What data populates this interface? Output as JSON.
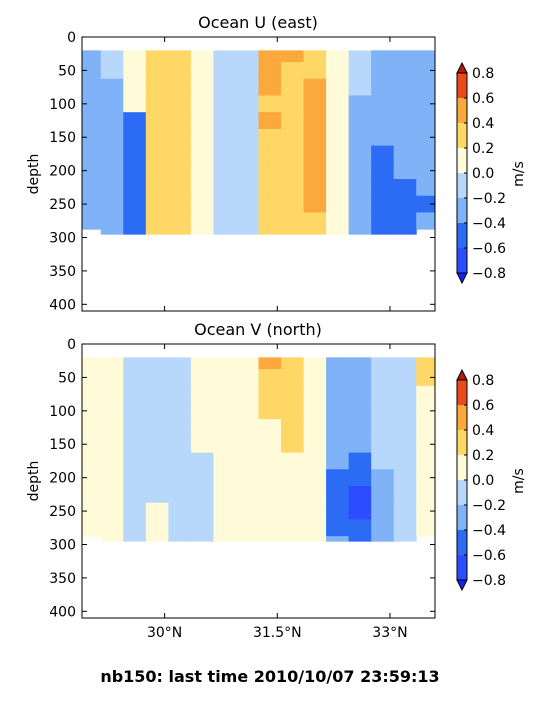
{
  "colors": {
    "levels": [
      "#2c4cff",
      "#2c6cf5",
      "#4a8df3",
      "#7fb2f7",
      "#b7d7fb",
      "#ddeffd",
      "#fffbd9",
      "#fff0b4",
      "#ffd766",
      "#fba83d",
      "#f07222",
      "#e94a1c"
    ],
    "under": "#1424ff",
    "over": "#b01a10",
    "white": "#ffffff"
  },
  "figure": {
    "suptitle": "nb150: last time 2010/10/07 23:59:13"
  },
  "panels": [
    {
      "id": "u",
      "title": "Ocean U (east)",
      "ylabel": "depth",
      "yticks": [
        "0",
        "50",
        "100",
        "150",
        "200",
        "250",
        "300",
        "350",
        "400"
      ],
      "cbar_label": "m/s",
      "cbar_ticks": [
        "0.8",
        "0.6",
        "0.4",
        "0.2",
        "0.0",
        "−0.2",
        "−0.4",
        "−0.6",
        "−0.8"
      ]
    },
    {
      "id": "v",
      "title": "Ocean V (north)",
      "ylabel": "depth",
      "yticks": [
        "0",
        "50",
        "100",
        "150",
        "200",
        "250",
        "300",
        "350",
        "400"
      ],
      "cbar_label": "m/s",
      "cbar_ticks": [
        "0.8",
        "0.6",
        "0.4",
        "0.2",
        "0.0",
        "−0.2",
        "−0.4",
        "−0.6",
        "−0.8"
      ]
    }
  ],
  "xticks": [
    "30°N",
    "31.5°N",
    "33°N"
  ],
  "chart_data": [
    {
      "type": "heatmap",
      "title": "Ocean U (east)",
      "ylabel": "depth",
      "colorbar_label": "m/s",
      "x": [
        29.0,
        29.3,
        29.6,
        29.9,
        30.2,
        30.5,
        30.8,
        31.1,
        31.4,
        31.7,
        32.0,
        32.3,
        32.6,
        32.9,
        33.2,
        33.5
      ],
      "y": [
        25,
        50,
        75,
        100,
        125,
        150,
        175,
        200,
        225,
        250,
        275,
        300
      ],
      "values": [
        [
          -0.25,
          -0.1,
          0.1,
          0.3,
          0.35,
          0.2,
          0.0,
          -0.1,
          0.55,
          0.45,
          0.35,
          0.05,
          -0.1,
          -0.2,
          -0.25,
          -0.25
        ],
        [
          -0.3,
          -0.15,
          0.1,
          0.3,
          0.4,
          0.2,
          0.0,
          -0.1,
          0.6,
          0.4,
          0.4,
          0.05,
          -0.15,
          -0.2,
          -0.25,
          -0.25
        ],
        [
          -0.3,
          -0.2,
          0.05,
          0.35,
          0.3,
          0.15,
          -0.05,
          -0.1,
          0.45,
          0.35,
          0.45,
          0.05,
          -0.15,
          -0.2,
          -0.25,
          -0.3
        ],
        [
          -0.25,
          -0.25,
          0.05,
          0.3,
          0.3,
          0.15,
          -0.05,
          -0.1,
          0.4,
          0.35,
          0.55,
          0.1,
          -0.2,
          -0.25,
          -0.25,
          -0.25
        ],
        [
          -0.3,
          -0.25,
          -0.45,
          0.3,
          0.25,
          0.15,
          -0.1,
          -0.15,
          0.45,
          0.35,
          0.5,
          0.1,
          -0.2,
          -0.3,
          -0.25,
          -0.3
        ],
        [
          -0.3,
          -0.3,
          -0.5,
          0.35,
          0.3,
          0.15,
          -0.1,
          -0.15,
          0.4,
          0.4,
          0.6,
          0.1,
          -0.2,
          -0.35,
          -0.3,
          -0.25
        ],
        [
          -0.25,
          -0.3,
          -0.5,
          0.35,
          0.3,
          0.15,
          -0.1,
          -0.15,
          0.4,
          0.3,
          0.55,
          0.1,
          -0.25,
          -0.4,
          -0.3,
          -0.3
        ],
        [
          -0.3,
          -0.25,
          -0.45,
          0.3,
          0.3,
          0.15,
          -0.1,
          -0.15,
          0.4,
          0.3,
          0.5,
          0.1,
          -0.25,
          -0.45,
          -0.35,
          -0.3
        ],
        [
          -0.35,
          -0.3,
          -0.45,
          0.3,
          0.35,
          0.15,
          -0.1,
          -0.15,
          0.4,
          0.3,
          0.5,
          0.15,
          -0.3,
          -0.5,
          -0.4,
          -0.35
        ],
        [
          -0.3,
          -0.3,
          -0.4,
          0.3,
          0.35,
          0.15,
          -0.1,
          -0.15,
          0.35,
          0.3,
          0.45,
          0.15,
          -0.3,
          -0.5,
          -0.45,
          -0.4
        ],
        [
          -0.3,
          -0.35,
          -0.4,
          0.3,
          0.3,
          0.15,
          -0.1,
          -0.15,
          0.35,
          0.35,
          0.4,
          0.1,
          -0.3,
          -0.55,
          -0.45,
          -0.35
        ],
        [
          null,
          -0.3,
          -0.4,
          0.3,
          0.3,
          0.15,
          -0.1,
          -0.1,
          0.35,
          0.35,
          0.4,
          0.1,
          -0.3,
          -0.55,
          -0.45,
          null
        ]
      ],
      "levels": [
        -0.8,
        -0.6,
        -0.4,
        -0.2,
        0.0,
        0.2,
        0.4,
        0.6,
        0.8
      ],
      "ylim": [
        410,
        0
      ]
    },
    {
      "type": "heatmap",
      "title": "Ocean V (north)",
      "ylabel": "depth",
      "colorbar_label": "m/s",
      "x": [
        29.0,
        29.3,
        29.6,
        29.9,
        30.2,
        30.5,
        30.8,
        31.1,
        31.4,
        31.7,
        32.0,
        32.3,
        32.6,
        32.9,
        33.2,
        33.5
      ],
      "y": [
        25,
        50,
        75,
        100,
        125,
        150,
        175,
        200,
        225,
        250,
        275,
        300
      ],
      "values": [
        [
          0.1,
          0.05,
          -0.05,
          -0.1,
          -0.05,
          0.05,
          0.1,
          0.15,
          0.45,
          0.35,
          0.15,
          -0.3,
          -0.25,
          -0.1,
          -0.05,
          0.3
        ],
        [
          0.1,
          0.05,
          -0.1,
          -0.1,
          -0.05,
          0.1,
          0.15,
          0.2,
          0.3,
          0.4,
          0.15,
          -0.3,
          -0.25,
          -0.15,
          -0.05,
          0.25
        ],
        [
          0.1,
          0.1,
          -0.1,
          -0.1,
          -0.1,
          0.1,
          0.15,
          0.2,
          0.25,
          0.3,
          0.15,
          -0.35,
          -0.3,
          -0.15,
          -0.05,
          0.2
        ],
        [
          0.1,
          0.1,
          -0.1,
          -0.05,
          -0.1,
          0.05,
          0.15,
          0.15,
          0.25,
          0.3,
          0.15,
          -0.3,
          -0.3,
          -0.15,
          -0.05,
          0.15
        ],
        [
          0.15,
          0.1,
          -0.1,
          -0.05,
          -0.1,
          0.05,
          0.1,
          0.15,
          0.2,
          0.25,
          0.15,
          -0.3,
          -0.3,
          -0.15,
          -0.05,
          0.1
        ],
        [
          0.1,
          0.1,
          -0.1,
          -0.05,
          -0.1,
          0.05,
          0.1,
          0.15,
          0.2,
          0.25,
          0.15,
          -0.35,
          -0.3,
          -0.15,
          -0.05,
          0.05
        ],
        [
          0.1,
          0.1,
          -0.05,
          -0.05,
          -0.1,
          -0.05,
          0.1,
          0.15,
          0.2,
          0.2,
          0.15,
          -0.35,
          -0.4,
          -0.15,
          -0.05,
          0.1
        ],
        [
          0.15,
          0.1,
          -0.1,
          -0.05,
          -0.1,
          -0.05,
          0.05,
          0.1,
          0.15,
          0.2,
          0.15,
          -0.4,
          -0.5,
          -0.2,
          -0.05,
          0.1
        ],
        [
          0.1,
          0.1,
          -0.1,
          -0.05,
          -0.1,
          -0.05,
          0.05,
          0.1,
          0.15,
          0.2,
          0.1,
          -0.45,
          -0.75,
          -0.2,
          -0.05,
          0.05
        ],
        [
          0.1,
          0.1,
          -0.1,
          0.05,
          -0.1,
          -0.05,
          0.05,
          0.15,
          0.2,
          0.15,
          0.1,
          -0.4,
          -0.7,
          -0.25,
          -0.05,
          0.05
        ],
        [
          0.15,
          0.1,
          -0.05,
          0.05,
          -0.05,
          -0.05,
          0.05,
          0.15,
          0.2,
          0.15,
          0.1,
          -0.4,
          -0.5,
          -0.25,
          -0.1,
          0.05
        ],
        [
          null,
          0.1,
          -0.05,
          0.05,
          -0.05,
          -0.05,
          0.05,
          0.15,
          0.2,
          0.15,
          0.1,
          -0.35,
          -0.45,
          -0.25,
          -0.1,
          null
        ]
      ],
      "levels": [
        -0.8,
        -0.6,
        -0.4,
        -0.2,
        0.0,
        0.2,
        0.4,
        0.6,
        0.8
      ],
      "ylim": [
        410,
        0
      ]
    }
  ]
}
